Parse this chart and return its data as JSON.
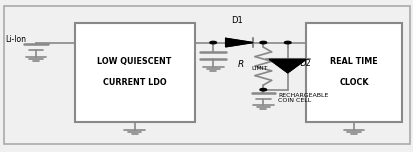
{
  "background_color": "#f0f0f0",
  "box_color": "#888888",
  "line_color": "#888888",
  "text_color": "#000000",
  "fig_width": 4.14,
  "fig_height": 1.52,
  "dpi": 100,
  "ldo_text": [
    "LOW QUIESCENT",
    "CURRENT LDO"
  ],
  "rtc_text1": "REAL TIME",
  "rtc_text2": "CLOCK",
  "li_ion_label": "Li-Ion",
  "d1_label": "D1",
  "d2_label": "D2",
  "rlimit_label": "R",
  "rlimit_sub": "LIMIT",
  "coin_cell_label": [
    "RECHARGEABLE",
    "COIN CELL"
  ]
}
